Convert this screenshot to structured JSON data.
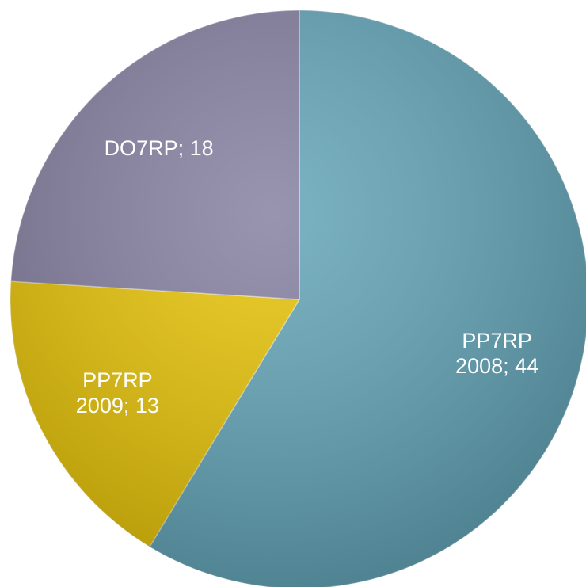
{
  "chart_data": {
    "type": "pie",
    "values": [
      44,
      13,
      18
    ],
    "value_labels": [
      [
        "PP7RP",
        "2008; 44"
      ],
      [
        "PP7RP",
        "2009; 13"
      ],
      [
        "DO7RP; 18"
      ]
    ],
    "colors": [
      "#5fa3b7",
      "#e8c300",
      "#827c9e"
    ]
  }
}
